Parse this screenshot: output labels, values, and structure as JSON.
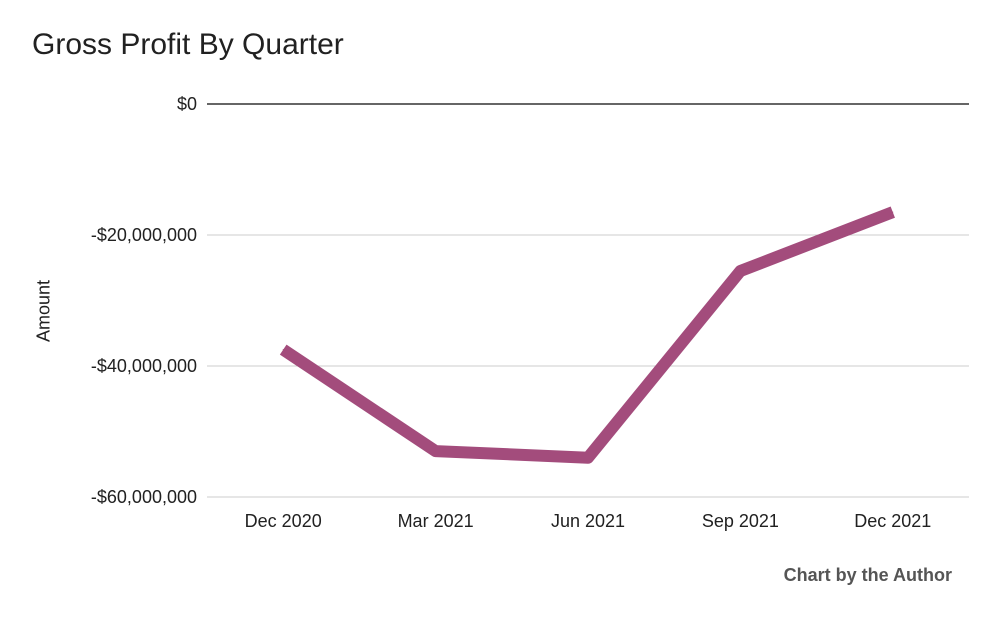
{
  "chart_data": {
    "type": "line",
    "title": "Gross Profit By Quarter",
    "xlabel": "",
    "ylabel": "Amount",
    "categories": [
      "Dec 2020",
      "Mar 2021",
      "Jun 2021",
      "Sep 2021",
      "Dec 2021"
    ],
    "series": [
      {
        "values": [
          -37500000,
          -53000000,
          -54000000,
          -25500000,
          -16500000
        ]
      }
    ],
    "ylim": [
      -60000000,
      0
    ],
    "yticks": [
      0,
      -20000000,
      -40000000,
      -60000000
    ],
    "ytick_labels": [
      "$0",
      "-$20,000,000",
      "-$40,000,000",
      "-$60,000,000"
    ],
    "grid": true,
    "line_color": "#a34c7c",
    "zero_line_color": "#333333",
    "grid_color": "#cccccc",
    "annotation": "Chart by the Author"
  }
}
